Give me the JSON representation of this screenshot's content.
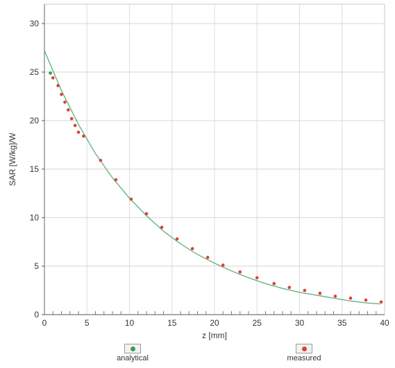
{
  "chart_data": {
    "type": "line",
    "xlabel": "z [mm]",
    "ylabel": "SAR [W/kg]/W",
    "xlim": [
      0,
      40
    ],
    "ylim": [
      0,
      32
    ],
    "x_ticks": [
      "0",
      "5",
      "10",
      "15",
      "20",
      "25",
      "30",
      "35",
      "40"
    ],
    "y_ticks": [
      "0",
      "5",
      "10",
      "15",
      "20",
      "25",
      "30"
    ],
    "grid": true,
    "legend_position": "bottom",
    "series": [
      {
        "name": "analytical",
        "color": "#3a9a5a",
        "style": "line",
        "x": [
          0,
          2,
          4,
          6,
          8,
          10,
          12,
          14,
          16,
          18,
          20,
          22,
          24,
          26,
          28,
          30,
          32,
          34,
          36,
          38,
          39.5
        ],
        "y": [
          27.2,
          23.1,
          19.6,
          16.6,
          14.1,
          12.0,
          10.2,
          8.6,
          7.3,
          6.2,
          5.3,
          4.5,
          3.8,
          3.2,
          2.7,
          2.3,
          2.0,
          1.7,
          1.4,
          1.2,
          1.1
        ]
      },
      {
        "name": "measured",
        "color": "#d8413a",
        "style": "markers",
        "x": [
          1.0,
          1.6,
          2.0,
          2.4,
          2.8,
          3.2,
          3.6,
          4.0,
          4.6,
          6.6,
          8.4,
          10.2,
          12.0,
          13.8,
          15.6,
          17.4,
          19.2,
          21.0,
          23.0,
          25.0,
          27.0,
          28.8,
          30.6,
          32.4,
          34.2,
          36.0,
          37.8,
          39.6
        ],
        "y": [
          24.4,
          23.6,
          22.7,
          21.9,
          21.1,
          20.2,
          19.5,
          18.8,
          18.4,
          15.9,
          13.9,
          11.9,
          10.4,
          9.0,
          7.8,
          6.8,
          5.9,
          5.1,
          4.4,
          3.8,
          3.2,
          2.8,
          2.5,
          2.2,
          1.9,
          1.7,
          1.5,
          1.3
        ]
      }
    ],
    "legend": [
      {
        "label": "analytical",
        "color": "#3a9a5a"
      },
      {
        "label": "measured",
        "color": "#d8413a"
      }
    ]
  }
}
